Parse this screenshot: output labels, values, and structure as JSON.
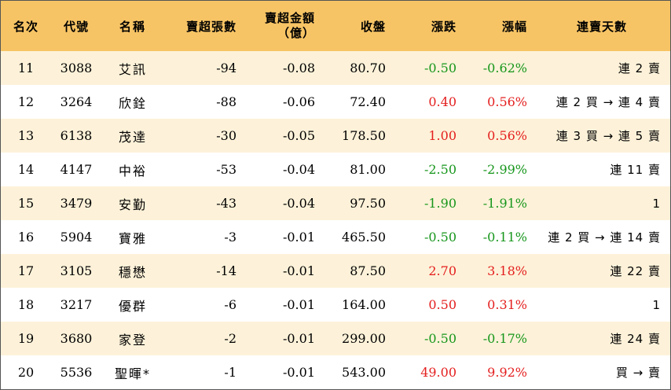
{
  "headers": {
    "rank": "名次",
    "code": "代號",
    "name": "名稱",
    "sell_lots": "賣超張數",
    "sell_amount_line1": "賣超金額",
    "sell_amount_line2": "（億）",
    "close": "收盤",
    "change": "漲跌",
    "change_pct": "漲幅",
    "streak": "連賣天數"
  },
  "colors": {
    "header_bg": "#f7c465",
    "stripe_bg": "#fdf2d9",
    "up": "#e41e1e",
    "down": "#16961b"
  },
  "rows": [
    {
      "rank": "11",
      "code": "3088",
      "name": "艾訊",
      "sell_lots": "-94",
      "sell_amount": "-0.08",
      "close": "80.70",
      "change": "-0.50",
      "change_pct": "-0.62%",
      "streak": "連 2 賣",
      "trend": "down"
    },
    {
      "rank": "12",
      "code": "3264",
      "name": "欣銓",
      "sell_lots": "-88",
      "sell_amount": "-0.06",
      "close": "72.40",
      "change": "0.40",
      "change_pct": "0.56%",
      "streak": "連 2 買 → 連 4 賣",
      "trend": "up"
    },
    {
      "rank": "13",
      "code": "6138",
      "name": "茂達",
      "sell_lots": "-30",
      "sell_amount": "-0.05",
      "close": "178.50",
      "change": "1.00",
      "change_pct": "0.56%",
      "streak": "連 3 買 → 連 5 賣",
      "trend": "up"
    },
    {
      "rank": "14",
      "code": "4147",
      "name": "中裕",
      "sell_lots": "-53",
      "sell_amount": "-0.04",
      "close": "81.00",
      "change": "-2.50",
      "change_pct": "-2.99%",
      "streak": "連 11 賣",
      "trend": "down"
    },
    {
      "rank": "15",
      "code": "3479",
      "name": "安勤",
      "sell_lots": "-43",
      "sell_amount": "-0.04",
      "close": "97.50",
      "change": "-1.90",
      "change_pct": "-1.91%",
      "streak": "1",
      "trend": "down"
    },
    {
      "rank": "16",
      "code": "5904",
      "name": "寶雅",
      "sell_lots": "-3",
      "sell_amount": "-0.01",
      "close": "465.50",
      "change": "-0.50",
      "change_pct": "-0.11%",
      "streak": "連 2 買 → 連 14 賣",
      "trend": "down"
    },
    {
      "rank": "17",
      "code": "3105",
      "name": "穩懋",
      "sell_lots": "-14",
      "sell_amount": "-0.01",
      "close": "87.50",
      "change": "2.70",
      "change_pct": "3.18%",
      "streak": "連 22 賣",
      "trend": "up"
    },
    {
      "rank": "18",
      "code": "3217",
      "name": "優群",
      "sell_lots": "-6",
      "sell_amount": "-0.01",
      "close": "164.00",
      "change": "0.50",
      "change_pct": "0.31%",
      "streak": "1",
      "trend": "up"
    },
    {
      "rank": "19",
      "code": "3680",
      "name": "家登",
      "sell_lots": "-2",
      "sell_amount": "-0.01",
      "close": "299.00",
      "change": "-0.50",
      "change_pct": "-0.17%",
      "streak": "連 24 賣",
      "trend": "down"
    },
    {
      "rank": "20",
      "code": "5536",
      "name": "聖暉*",
      "sell_lots": "-1",
      "sell_amount": "-0.01",
      "close": "543.00",
      "change": "49.00",
      "change_pct": "9.92%",
      "streak": "買 → 賣",
      "trend": "up"
    }
  ]
}
